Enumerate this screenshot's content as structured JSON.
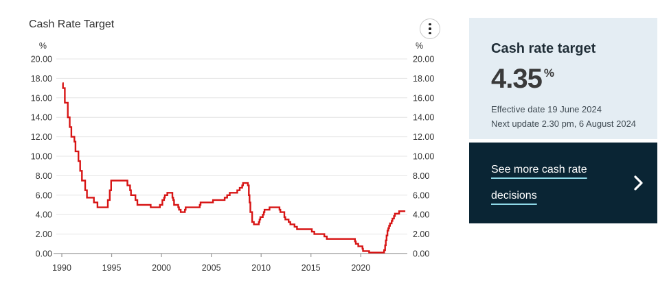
{
  "colors": {
    "accent_red": "#d71414",
    "gridline": "#e4e4e4",
    "axis": "#999999",
    "text": "#333333",
    "panel_bg": "#e4edf3",
    "panel_dark_bg": "#0a2534",
    "link_underline": "#8fd9e8"
  },
  "chart": {
    "title": "Cash Rate Target",
    "menu_icon": "kebab-menu-icon"
  },
  "chart_data": {
    "type": "line",
    "title": "Cash Rate Target",
    "xlabel": "",
    "ylabel": "%",
    "ylim": [
      0,
      20
    ],
    "y_ticks": [
      0,
      2,
      4,
      6,
      8,
      10,
      12,
      14,
      16,
      18,
      20
    ],
    "x_range": [
      1990,
      2024.6
    ],
    "x_ticks": [
      1990,
      1995,
      2000,
      2005,
      2010,
      2015,
      2020
    ],
    "grid": true,
    "legend": false,
    "series": [
      {
        "name": "Cash Rate Target",
        "color": "#d71414",
        "step": "after",
        "points": [
          [
            1990.06,
            17.5
          ],
          [
            1990.12,
            17.0
          ],
          [
            1990.3,
            15.5
          ],
          [
            1990.6,
            14.0
          ],
          [
            1990.79,
            13.0
          ],
          [
            1990.96,
            12.0
          ],
          [
            1991.26,
            11.5
          ],
          [
            1991.37,
            10.5
          ],
          [
            1991.67,
            9.5
          ],
          [
            1991.84,
            8.5
          ],
          [
            1992.02,
            7.5
          ],
          [
            1992.34,
            6.5
          ],
          [
            1992.52,
            5.75
          ],
          [
            1993.22,
            5.25
          ],
          [
            1993.58,
            4.75
          ],
          [
            1994.62,
            5.5
          ],
          [
            1994.81,
            6.5
          ],
          [
            1994.95,
            7.5
          ],
          [
            1996.58,
            7.0
          ],
          [
            1996.85,
            6.5
          ],
          [
            1996.94,
            6.0
          ],
          [
            1997.39,
            5.5
          ],
          [
            1997.58,
            5.0
          ],
          [
            1998.92,
            4.75
          ],
          [
            1999.84,
            5.0
          ],
          [
            2000.09,
            5.5
          ],
          [
            2000.26,
            5.75
          ],
          [
            2000.34,
            6.0
          ],
          [
            2000.59,
            6.25
          ],
          [
            2001.1,
            5.75
          ],
          [
            2001.18,
            5.5
          ],
          [
            2001.26,
            5.0
          ],
          [
            2001.68,
            4.75
          ],
          [
            2001.76,
            4.5
          ],
          [
            2001.93,
            4.25
          ],
          [
            2002.35,
            4.5
          ],
          [
            2002.43,
            4.75
          ],
          [
            2003.84,
            5.0
          ],
          [
            2003.92,
            5.25
          ],
          [
            2005.17,
            5.5
          ],
          [
            2006.34,
            5.75
          ],
          [
            2006.59,
            6.0
          ],
          [
            2006.85,
            6.25
          ],
          [
            2007.6,
            6.5
          ],
          [
            2007.85,
            6.75
          ],
          [
            2008.1,
            7.0
          ],
          [
            2008.18,
            7.25
          ],
          [
            2008.67,
            7.0
          ],
          [
            2008.77,
            6.0
          ],
          [
            2008.84,
            5.25
          ],
          [
            2008.92,
            4.25
          ],
          [
            2009.1,
            3.25
          ],
          [
            2009.27,
            3.0
          ],
          [
            2009.77,
            3.25
          ],
          [
            2009.84,
            3.5
          ],
          [
            2009.92,
            3.75
          ],
          [
            2010.17,
            4.0
          ],
          [
            2010.27,
            4.25
          ],
          [
            2010.34,
            4.5
          ],
          [
            2010.84,
            4.75
          ],
          [
            2011.84,
            4.5
          ],
          [
            2011.93,
            4.25
          ],
          [
            2012.33,
            3.75
          ],
          [
            2012.43,
            3.5
          ],
          [
            2012.76,
            3.25
          ],
          [
            2012.93,
            3.0
          ],
          [
            2013.35,
            2.75
          ],
          [
            2013.6,
            2.5
          ],
          [
            2015.09,
            2.25
          ],
          [
            2015.34,
            2.0
          ],
          [
            2016.34,
            1.75
          ],
          [
            2016.59,
            1.5
          ],
          [
            2019.42,
            1.25
          ],
          [
            2019.5,
            1.0
          ],
          [
            2019.75,
            0.75
          ],
          [
            2020.17,
            0.5
          ],
          [
            2020.22,
            0.25
          ],
          [
            2020.84,
            0.1
          ],
          [
            2022.34,
            0.35
          ],
          [
            2022.44,
            0.85
          ],
          [
            2022.51,
            1.35
          ],
          [
            2022.59,
            1.85
          ],
          [
            2022.68,
            2.35
          ],
          [
            2022.76,
            2.6
          ],
          [
            2022.84,
            2.85
          ],
          [
            2022.93,
            3.1
          ],
          [
            2023.1,
            3.35
          ],
          [
            2023.18,
            3.6
          ],
          [
            2023.33,
            3.85
          ],
          [
            2023.43,
            4.1
          ],
          [
            2023.85,
            4.35
          ],
          [
            2024.47,
            4.35
          ]
        ]
      }
    ]
  },
  "panel": {
    "heading": "Cash rate target",
    "rate_value": "4.35",
    "rate_unit": "%",
    "effective_date": "Effective date 19 June 2024",
    "next_update": "Next update 2.30 pm, 6 August 2024",
    "cta_label": "See more cash rate decisions"
  }
}
